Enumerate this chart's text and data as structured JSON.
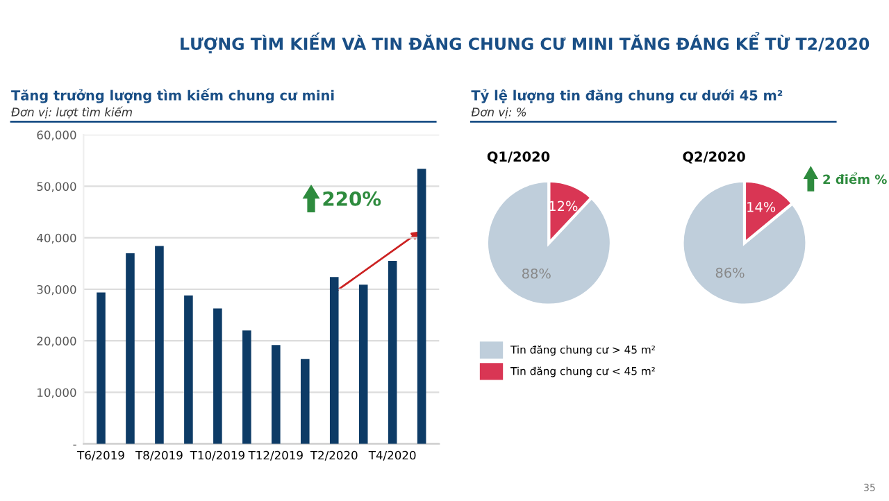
{
  "chart_data": [
    {
      "type": "bar",
      "title": "Tăng trưởng lượng tìm kiếm chung cư mini",
      "subtitle": "Đơn vị: lượt tìm kiếm",
      "categories": [
        "T6/2019",
        null,
        "T8/2019",
        null,
        "T10/2019",
        null,
        "T12/2019",
        null,
        "T2/2020",
        null,
        "T4/2020",
        null
      ],
      "values": [
        29400,
        37000,
        38400,
        28800,
        26300,
        22000,
        19200,
        16500,
        32400,
        30900,
        35500,
        53400
      ],
      "color": "#0d3b66",
      "ylim": [
        0,
        60000
      ],
      "yticks": [
        {
          "value": 0,
          "label": "-"
        },
        {
          "value": 10000,
          "label": "10,000"
        },
        {
          "value": 20000,
          "label": "20,000"
        },
        {
          "value": 30000,
          "label": "30,000"
        },
        {
          "value": 40000,
          "label": "40,000"
        },
        {
          "value": 50000,
          "label": "50,000"
        },
        {
          "value": 60000,
          "label": "60,000"
        }
      ],
      "grid": "y",
      "annotations": [
        "LƯỢNG TÌM KIẾM VÀ TIN ĐĂNG CHUNG CƯ MINI TĂNG ĐÁNG KỂ TỪ T2/2020",
        "220%",
        "35"
      ]
    },
    {
      "type": "pie",
      "title": "Q1/2020",
      "categories": [
        "Tin đăng chung cư > 45 m²",
        "Tin đăng chung cư < 45 m²"
      ],
      "values": [
        88,
        12
      ],
      "colors": [
        "#bfcedb",
        "#d93654"
      ],
      "value_labels": [
        "88%",
        "12%"
      ],
      "legend": "bottom",
      "annotations": [
        "Tỷ lệ lượng tin đăng chung cư dưới 45 m²",
        "Đơn vị: %"
      ]
    },
    {
      "type": "pie",
      "title": "Q2/2020",
      "categories": [
        null,
        null
      ],
      "values": [
        86,
        14
      ],
      "colors": [
        "#bfcedb",
        "#d93654"
      ],
      "value_labels": [
        "86%",
        "14%"
      ],
      "annotations": [
        "2 điểm %"
      ]
    }
  ]
}
